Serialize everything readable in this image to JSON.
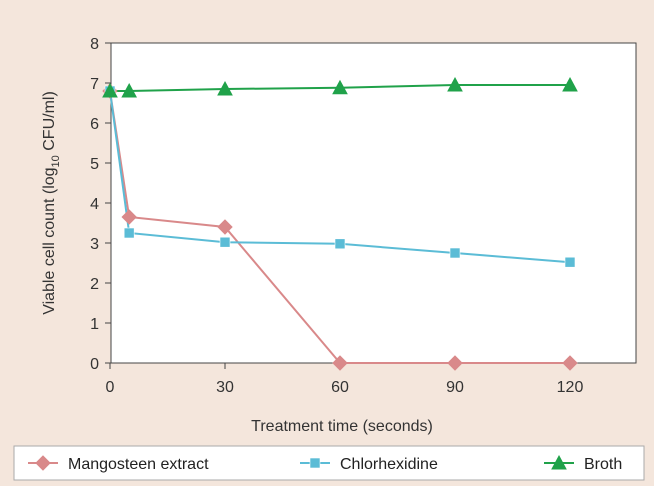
{
  "chart_data": {
    "type": "line",
    "title": "",
    "xlabel": "Treatment time (seconds)",
    "ylabel": {
      "prefix": "Viable cell count (log",
      "subscript": "10",
      "suffix": " CFU/ml)"
    },
    "x_ticks": [
      0,
      30,
      60,
      90,
      120
    ],
    "y_ticks": [
      0,
      1,
      2,
      3,
      4,
      5,
      6,
      7,
      8
    ],
    "xlim": [
      0,
      130
    ],
    "ylim": [
      0,
      8
    ],
    "grid": false,
    "legend_position": "bottom",
    "series": [
      {
        "name": "Mangosteen extract",
        "marker": "diamond",
        "color": "#d9898a",
        "x": [
          0,
          5,
          30,
          60,
          90,
          120
        ],
        "y": [
          6.8,
          3.65,
          3.4,
          0,
          0,
          0
        ]
      },
      {
        "name": "Chlorhexidine",
        "marker": "square",
        "color": "#5bbcd6",
        "x": [
          0,
          5,
          30,
          60,
          90,
          120
        ],
        "y": [
          6.8,
          3.25,
          3.02,
          2.98,
          2.75,
          2.52
        ]
      },
      {
        "name": "Broth",
        "marker": "triangle",
        "color": "#20a24a",
        "x": [
          0,
          5,
          30,
          60,
          90,
          120
        ],
        "y": [
          6.8,
          6.8,
          6.85,
          6.88,
          6.95,
          6.95
        ]
      }
    ]
  }
}
